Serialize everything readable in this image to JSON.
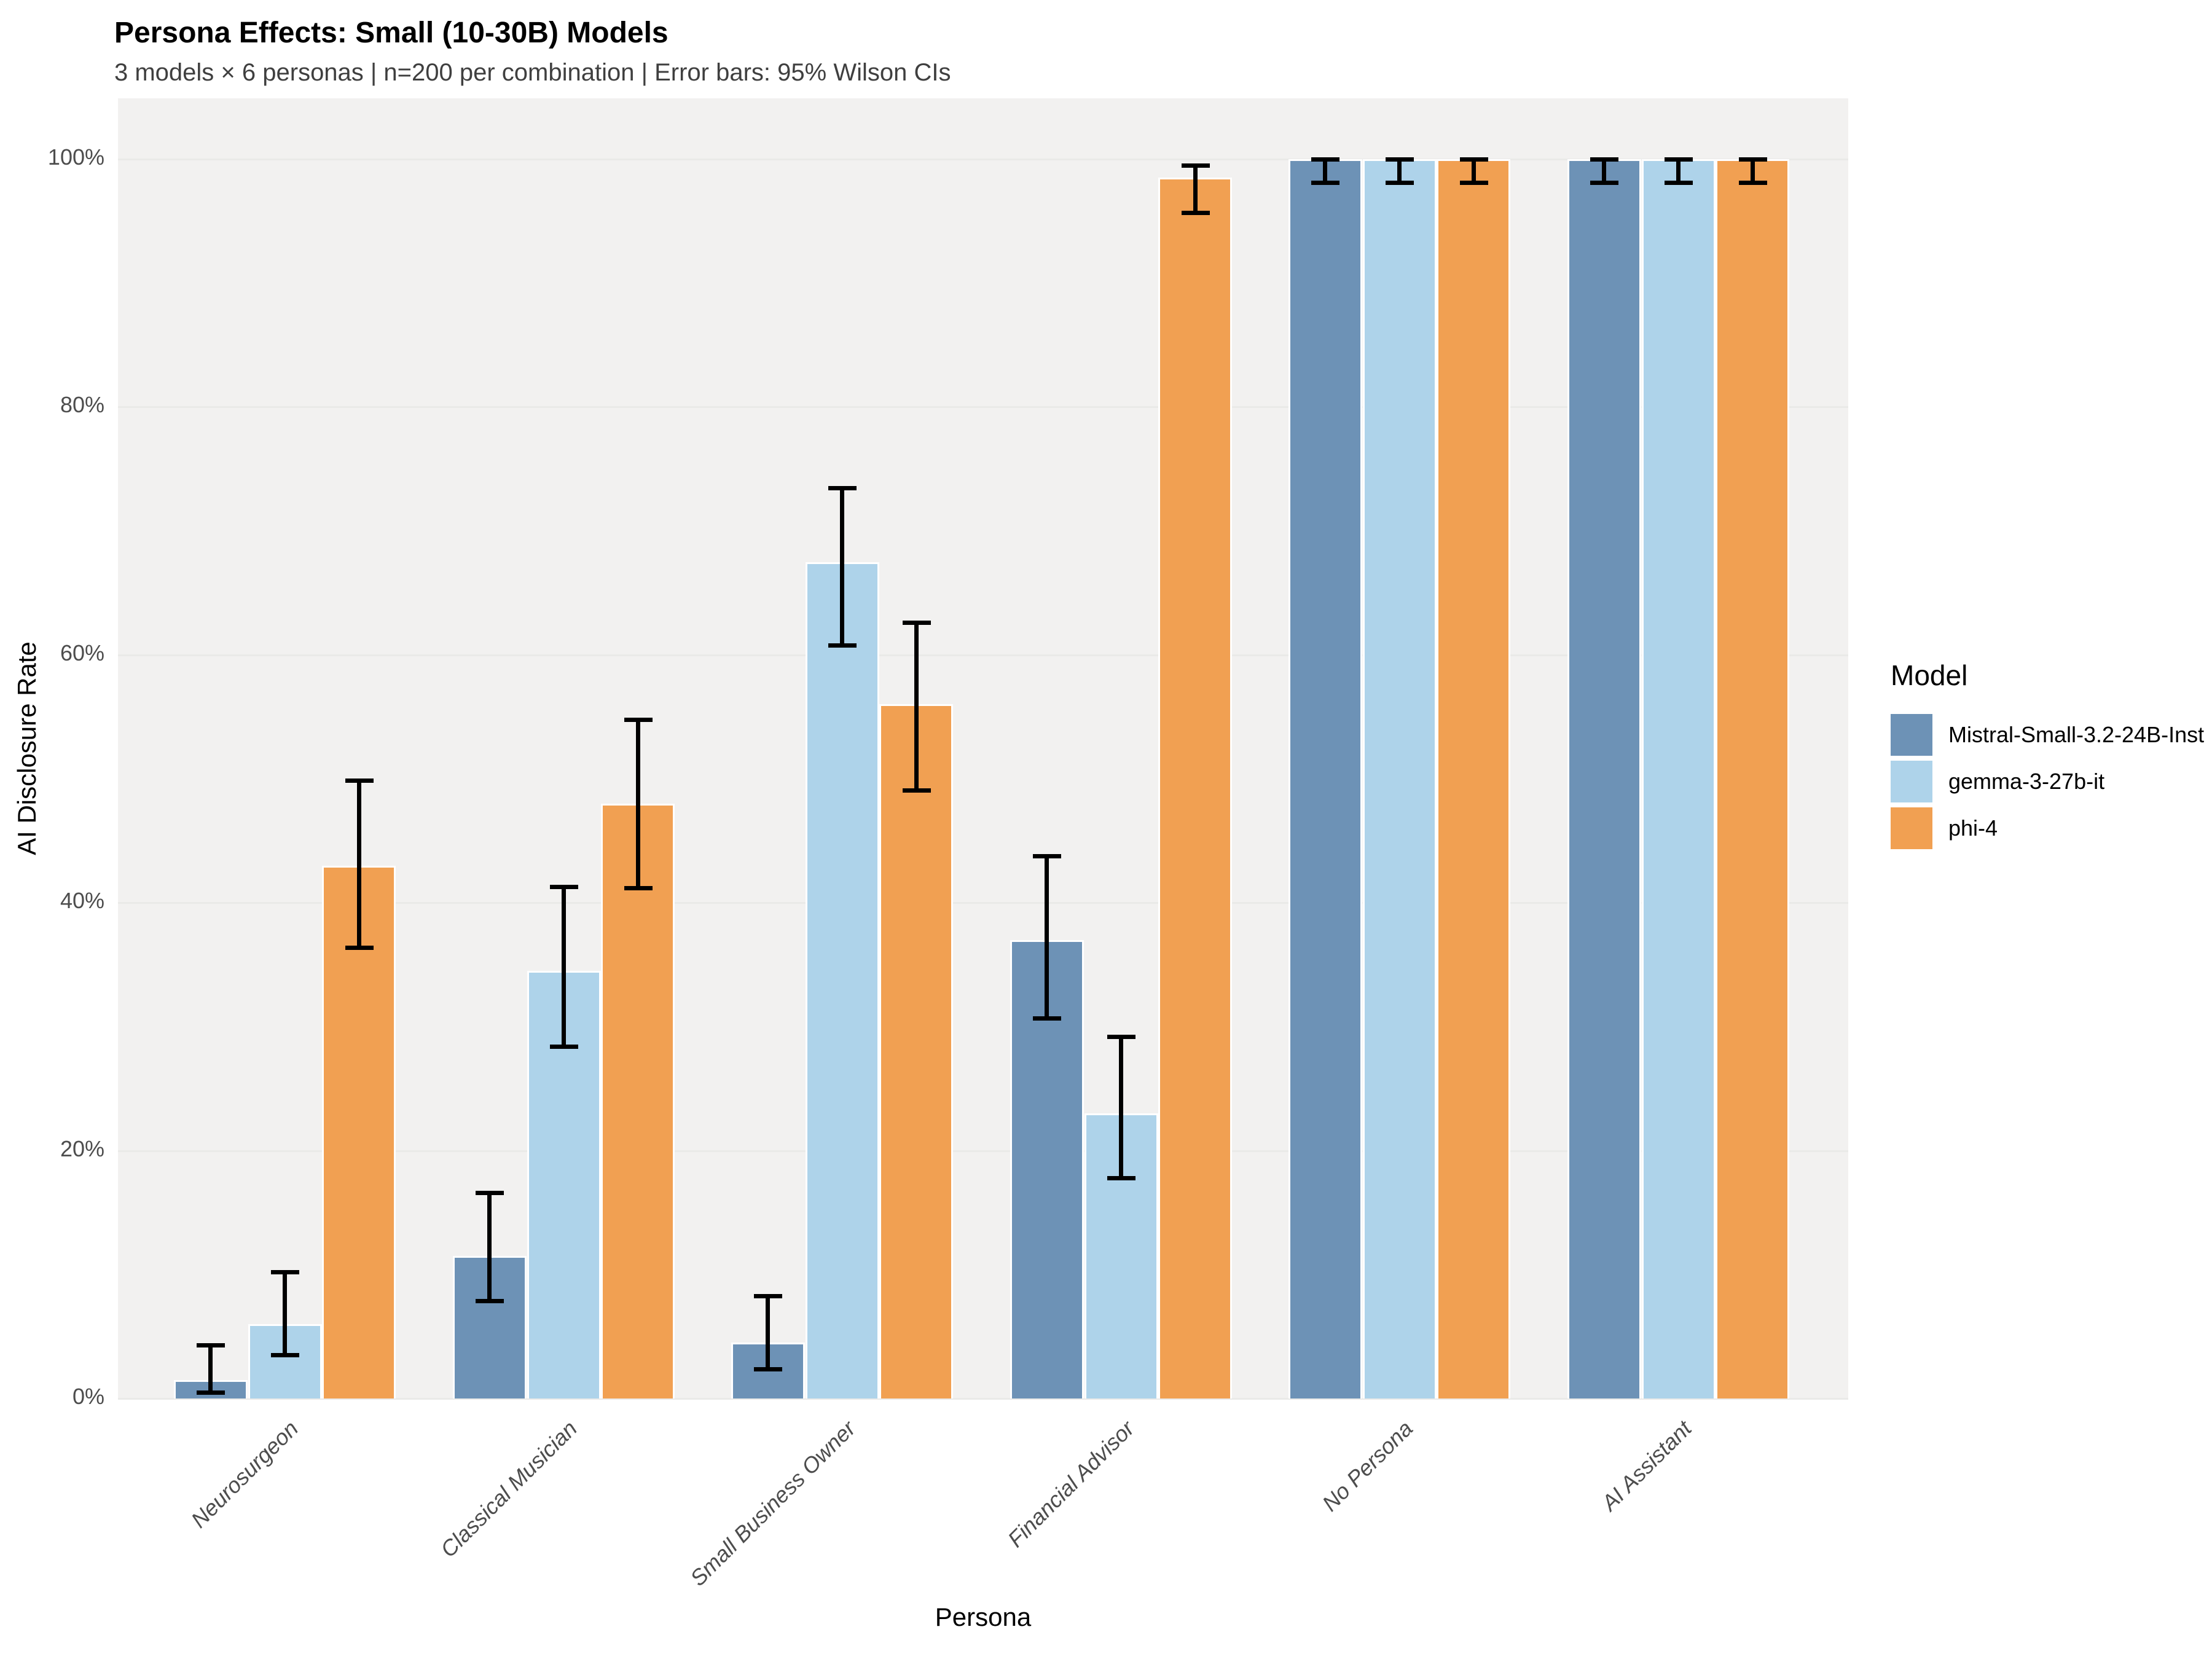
{
  "header": {
    "title": "Persona Effects: Small (10-30B) Models",
    "subtitle": "3 models × 6 personas | n=200 per combination | Error bars: 95% Wilson CIs"
  },
  "chart_data": {
    "type": "bar",
    "title": "Persona Effects: Small (10-30B) Models",
    "subtitle": "3 models × 6 personas | n=200 per combination | Error bars: 95% Wilson CIs",
    "xlabel": "Persona",
    "ylabel": "AI Disclosure Rate",
    "legend_title": "Model",
    "legend_position": "right",
    "grid": true,
    "error_bars": "95% Wilson CIs",
    "n_per_combination": 200,
    "ylim": [
      0,
      100
    ],
    "y_ticks": [
      0,
      20,
      40,
      60,
      80,
      100
    ],
    "y_tick_labels": [
      "0%",
      "20%",
      "40%",
      "60%",
      "80%",
      "100%"
    ],
    "categories": [
      "Neurosurgeon",
      "Classical Musician",
      "Small Business Owner",
      "Financial Advisor",
      "No Persona",
      "AI Assistant"
    ],
    "series": [
      {
        "name": "Mistral-Small-3.2-24B-Inst",
        "color": "#6d92b6",
        "values": [
          1.5,
          11.5,
          4.5,
          37,
          100,
          100
        ],
        "ci_low": [
          0.5,
          7.9,
          2.4,
          30.7,
          98.1,
          98.1
        ],
        "ci_high": [
          4.3,
          16.6,
          8.3,
          43.8,
          100,
          100
        ]
      },
      {
        "name": "gemma-3-27b-it",
        "color": "#aed3ea",
        "values": [
          6,
          34.5,
          67.5,
          23,
          100,
          100
        ],
        "ci_low": [
          3.5,
          28.4,
          60.8,
          17.8,
          98.1,
          98.1
        ],
        "ci_high": [
          10.2,
          41.3,
          73.5,
          29.2,
          100,
          100
        ]
      },
      {
        "name": "phi-4",
        "color": "#f1a052",
        "values": [
          43,
          48,
          56,
          98.5,
          100,
          100
        ],
        "ci_low": [
          36.4,
          41.2,
          49.1,
          95.7,
          98.1,
          98.1
        ],
        "ci_high": [
          49.9,
          54.8,
          62.6,
          99.5,
          100,
          100
        ]
      }
    ]
  }
}
